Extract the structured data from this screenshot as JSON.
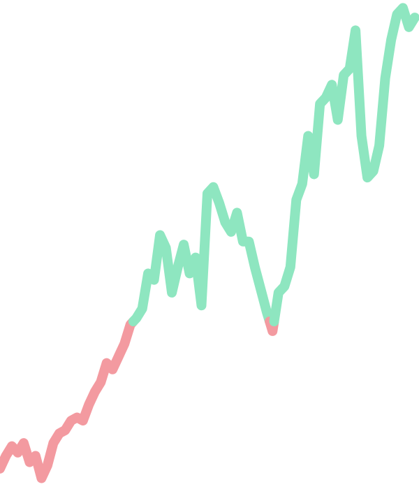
{
  "chart_data": {
    "type": "line",
    "baseline": 155,
    "colors": {
      "above": "#8ee6c0",
      "below": "#f39aa0"
    },
    "xlim": [
      0,
      120
    ],
    "ylim": [
      100,
      245
    ],
    "grid": false,
    "legend": "none",
    "series": [
      {
        "values": [
          109,
          113,
          116,
          114,
          117,
          111,
          113,
          106,
          110,
          117,
          120,
          121,
          124,
          125,
          124,
          129,
          133,
          136,
          142,
          140,
          144,
          148,
          154,
          156,
          159,
          170,
          168,
          182,
          178,
          164,
          172,
          179,
          170,
          175,
          160,
          195,
          197,
          192,
          186,
          183,
          189,
          180,
          180,
          172,
          165,
          158,
          152,
          164,
          166,
          172,
          193,
          198,
          213,
          201,
          223,
          225,
          229,
          218,
          232,
          234,
          246,
          213,
          200,
          202,
          210,
          231,
          243,
          251,
          253,
          247,
          250
        ]
      }
    ]
  }
}
